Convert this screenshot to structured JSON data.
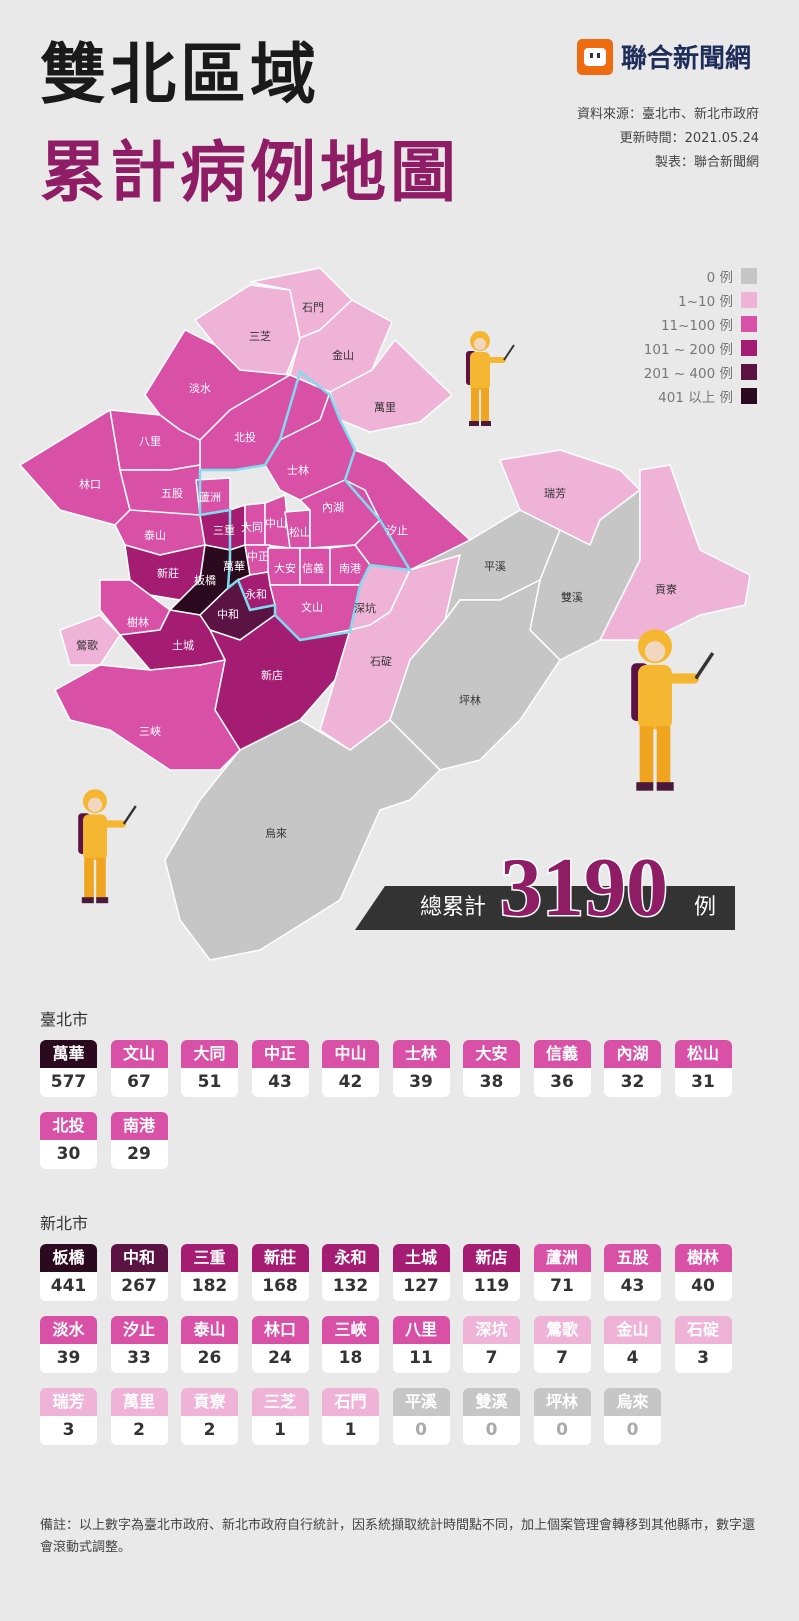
{
  "title": {
    "line1": "雙北區域",
    "line2": "累計病例地圖"
  },
  "logo": {
    "text": "聯合新聞網"
  },
  "source": {
    "data": "資料來源：臺北市、新北市政府",
    "updated": "更新時間：2021.05.24",
    "made_by": "製表：聯合新聞網"
  },
  "legend": [
    {
      "label": "0 例",
      "color": "#c6c6c6"
    },
    {
      "label": "1~10 例",
      "color": "#f0b3d8"
    },
    {
      "label": "11~100 例",
      "color": "#d851a7"
    },
    {
      "label": "101 ~ 200 例",
      "color": "#a41d73"
    },
    {
      "label": "201 ~ 400 例",
      "color": "#5b1343"
    },
    {
      "label": "401 以上 例",
      "color": "#2b0a1f"
    }
  ],
  "total": {
    "label": "總累計",
    "value": "3190",
    "unit": "例"
  },
  "taipei": {
    "title": "臺北市",
    "districts": [
      {
        "name": "萬華",
        "count": 577
      },
      {
        "name": "文山",
        "count": 67
      },
      {
        "name": "大同",
        "count": 51
      },
      {
        "name": "中正",
        "count": 43
      },
      {
        "name": "中山",
        "count": 42
      },
      {
        "name": "士林",
        "count": 39
      },
      {
        "name": "大安",
        "count": 38
      },
      {
        "name": "信義",
        "count": 36
      },
      {
        "name": "內湖",
        "count": 32
      },
      {
        "name": "松山",
        "count": 31
      },
      {
        "name": "北投",
        "count": 30
      },
      {
        "name": "南港",
        "count": 29
      }
    ]
  },
  "new_taipei": {
    "title": "新北市",
    "districts": [
      {
        "name": "板橋",
        "count": 441
      },
      {
        "name": "中和",
        "count": 267
      },
      {
        "name": "三重",
        "count": 182
      },
      {
        "name": "新莊",
        "count": 168
      },
      {
        "name": "永和",
        "count": 132
      },
      {
        "name": "土城",
        "count": 127
      },
      {
        "name": "新店",
        "count": 119
      },
      {
        "name": "蘆洲",
        "count": 71
      },
      {
        "name": "五股",
        "count": 43
      },
      {
        "name": "樹林",
        "count": 40
      },
      {
        "name": "淡水",
        "count": 39
      },
      {
        "name": "汐止",
        "count": 33
      },
      {
        "name": "泰山",
        "count": 26
      },
      {
        "name": "林口",
        "count": 24
      },
      {
        "name": "三峽",
        "count": 18
      },
      {
        "name": "八里",
        "count": 11
      },
      {
        "name": "深坑",
        "count": 7
      },
      {
        "name": "鶯歌",
        "count": 7
      },
      {
        "name": "金山",
        "count": 4
      },
      {
        "name": "石碇",
        "count": 3
      },
      {
        "name": "瑞芳",
        "count": 3
      },
      {
        "name": "萬里",
        "count": 2
      },
      {
        "name": "貢寮",
        "count": 2
      },
      {
        "name": "三芝",
        "count": 1
      },
      {
        "name": "石門",
        "count": 1
      },
      {
        "name": "平溪",
        "count": 0
      },
      {
        "name": "雙溪",
        "count": 0
      },
      {
        "name": "坪林",
        "count": 0
      },
      {
        "name": "烏來",
        "count": 0
      }
    ]
  },
  "note": "備註：以上數字為臺北市政府、新北市政府自行統計，因系統擷取統計時間點不同，加上個案管理會轉移到其他縣市，數字還會滾動式調整。"
}
